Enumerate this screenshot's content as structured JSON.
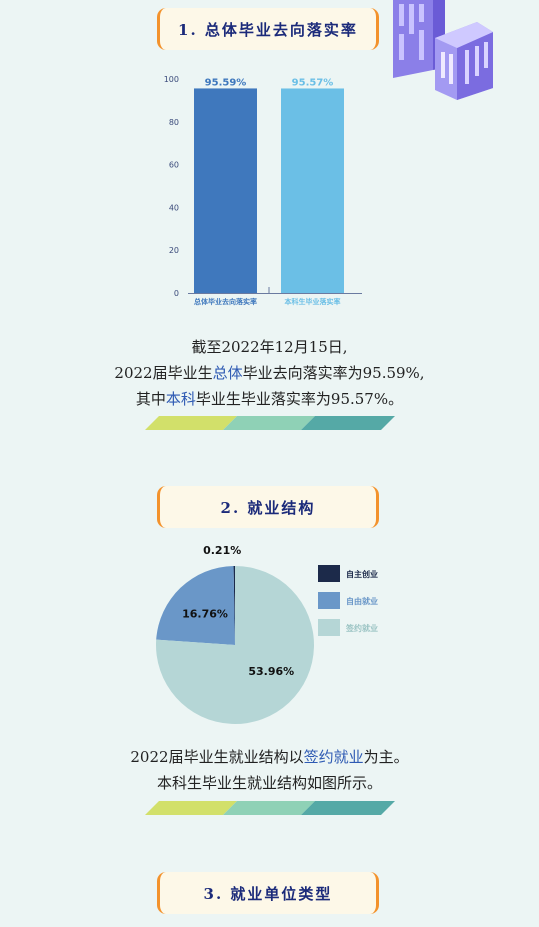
{
  "section1": {
    "title": "1. 总体毕业去向落实率"
  },
  "section2": {
    "title": "2. 就业结构"
  },
  "section3": {
    "title": "3. 就业单位类型"
  },
  "text1": {
    "line1": "截至2022年12月15日,",
    "line2_pre": "2022届毕业生",
    "line2_hl": "总体",
    "line2_post": "毕业去向落实率为95.59%,",
    "line3_pre": "其中",
    "line3_hl": "本科",
    "line3_post": "毕业生毕业落实率为95.57%。"
  },
  "text2": {
    "line1_pre": "2022届毕业生就业结构以",
    "line1_hl": "签约就业",
    "line1_post": "为主。",
    "line2": "本科生毕业生就业结构如图所示。"
  },
  "colors": {
    "bar1": "#3f78bd",
    "bar2": "#6bbfe6",
    "pie_self": "#1c2a4a",
    "pie_free": "#6a97c8",
    "pie_sign": "#b5d6d6",
    "accent": "#f3922c",
    "stripe1": "#d2e06a",
    "stripe2": "#8fd1b6",
    "stripe3": "#55a9a6"
  },
  "chart_data": [
    {
      "type": "bar",
      "categories": [
        "总体毕业去向落实率",
        "本科生毕业落实率"
      ],
      "values": [
        95.59,
        95.57
      ],
      "data_labels": [
        "95.59%",
        "95.57%"
      ],
      "ylim": [
        0,
        100
      ],
      "yticks": [
        0,
        20,
        40,
        60,
        80,
        100
      ],
      "colors": [
        "#3f78bd",
        "#6bbfe6"
      ]
    },
    {
      "type": "pie",
      "labels": [
        "自主创业",
        "自由就业",
        "签约就业"
      ],
      "values": [
        0.21,
        16.76,
        53.96
      ],
      "data_labels": [
        "0.21%",
        "16.76%",
        "53.96%"
      ],
      "colors": [
        "#1c2a4a",
        "#6a97c8",
        "#b5d6d6"
      ],
      "legend_position": "right"
    }
  ]
}
